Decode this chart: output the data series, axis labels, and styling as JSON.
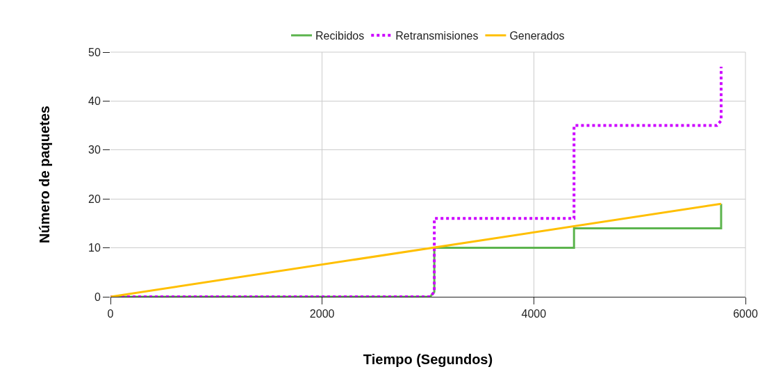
{
  "chart_data": {
    "type": "line",
    "xlabel": "Tiempo (Segundos)",
    "ylabel": "Número de paquetes",
    "xlim": [
      0,
      6000
    ],
    "xticks": [
      0,
      2000,
      4000,
      6000
    ],
    "ylim": [
      0,
      50
    ],
    "yticks": [
      0,
      10,
      20,
      30,
      40,
      50
    ],
    "grid": true,
    "legend": "top",
    "marker": "none",
    "series": [
      {
        "name": "Recibidos",
        "color": "#5cb44e",
        "line_style": "solid",
        "x": [
          0,
          3020,
          3060,
          3060,
          4380,
          4380,
          5770,
          5770
        ],
        "values": [
          0,
          0,
          1,
          10,
          10,
          14,
          14,
          19
        ]
      },
      {
        "name": "Retransmisiones",
        "color": "#cc00ff",
        "line_style": "dotted",
        "x": [
          0,
          3020,
          3060,
          3060,
          4380,
          4380,
          5730,
          5770,
          5770
        ],
        "values": [
          0,
          0,
          1,
          16,
          16,
          35,
          35,
          36,
          47
        ]
      },
      {
        "name": "Generados",
        "color": "#ffbf00",
        "line_style": "solid",
        "x": [
          0,
          5770
        ],
        "values": [
          0,
          19
        ]
      }
    ]
  }
}
